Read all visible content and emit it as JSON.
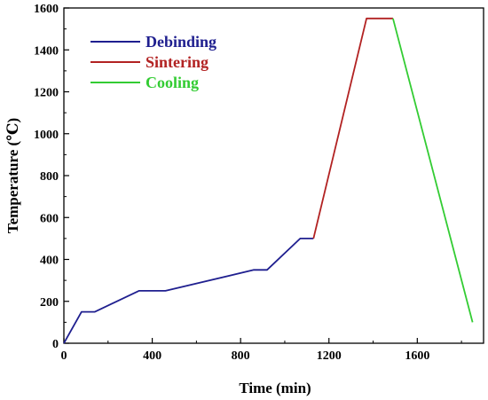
{
  "chart_data": {
    "type": "line",
    "xlabel": "Time (min)",
    "ylabel": "Temperature (℃)",
    "xlim": [
      0,
      1900
    ],
    "ylim": [
      0,
      1600
    ],
    "xticks": [
      0,
      400,
      800,
      1200,
      1600
    ],
    "yticks": [
      0,
      200,
      400,
      600,
      800,
      1000,
      1200,
      1400,
      1600
    ],
    "legend_position": "top-left",
    "grid": false,
    "series": [
      {
        "name": "Debinding",
        "color": "#1f1f8f",
        "points": [
          [
            0,
            0
          ],
          [
            80,
            150
          ],
          [
            140,
            150
          ],
          [
            340,
            250
          ],
          [
            460,
            250
          ],
          [
            860,
            350
          ],
          [
            920,
            350
          ],
          [
            1070,
            500
          ],
          [
            1130,
            500
          ]
        ]
      },
      {
        "name": "Sintering",
        "color": "#b22222",
        "points": [
          [
            1130,
            500
          ],
          [
            1370,
            1550
          ],
          [
            1490,
            1550
          ]
        ]
      },
      {
        "name": "Cooling",
        "color": "#33cc33",
        "points": [
          [
            1490,
            1550
          ],
          [
            1850,
            100
          ]
        ]
      }
    ]
  }
}
